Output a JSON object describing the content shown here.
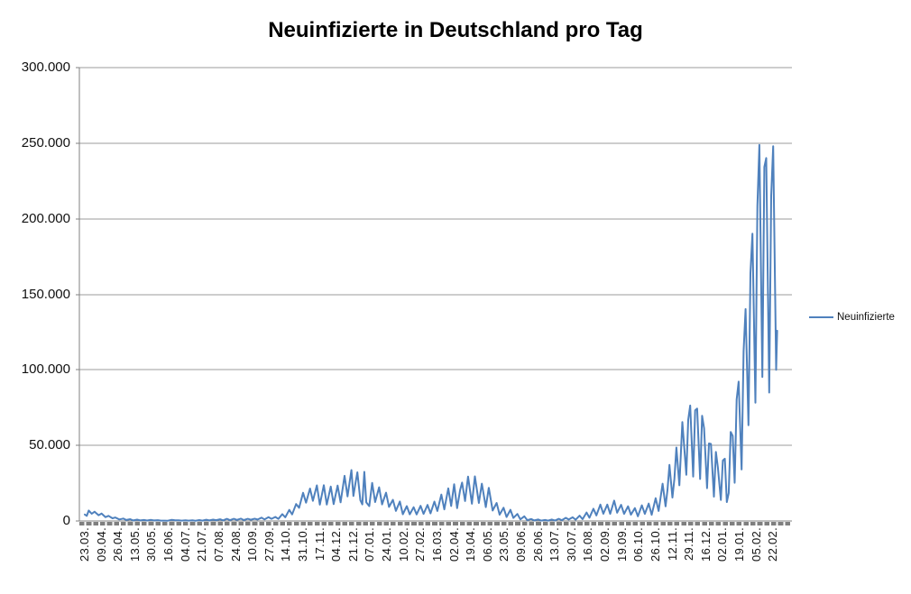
{
  "chart_data": {
    "type": "line",
    "title": "Neuinfizierte in Deutschland pro Tag",
    "xlabel": "",
    "ylabel": "",
    "ylim": [
      0,
      300000
    ],
    "ytick_interval": 50000,
    "grid": true,
    "legend_position": "right",
    "colors": {
      "series_line": "#4f81bd",
      "gridline": "#9b9b9b",
      "axis": "#808080",
      "tick_dashes": "#7f7f7f",
      "text": "#111111",
      "background": "#ffffff"
    },
    "yticks": [
      {
        "value": 0,
        "label": "0"
      },
      {
        "value": 50000,
        "label": "50.000"
      },
      {
        "value": 100000,
        "label": "100.000"
      },
      {
        "value": 150000,
        "label": "150.000"
      },
      {
        "value": 200000,
        "label": "200.000"
      },
      {
        "value": 250000,
        "label": "250.000"
      },
      {
        "value": 300000,
        "label": "300.000"
      }
    ],
    "xtick_interval_days": 17,
    "xtick_labels": [
      "23.03.",
      "09.04.",
      "26.04.",
      "13.05.",
      "30.05.",
      "16.06.",
      "04.07.",
      "21.07.",
      "07.08.",
      "24.08.",
      "10.09.",
      "27.09.",
      "14.10.",
      "31.10.",
      "17.11.",
      "04.12.",
      "21.12.",
      "07.01.",
      "24.01.",
      "10.02.",
      "27.02.",
      "16.03.",
      "02.04.",
      "19.04.",
      "06.05.",
      "23.05.",
      "09.06.",
      "26.06.",
      "13.07.",
      "30.07.",
      "16.08.",
      "02.09.",
      "19.09.",
      "06.10.",
      "26.10.",
      "12.11.",
      "29.11.",
      "16.12.",
      "02.01.",
      "19.01.",
      "05.02.",
      "22.02."
    ],
    "x_total_days": 701,
    "series": [
      {
        "name": "Neuinfizierte",
        "color": "#4f81bd",
        "points": [
          [
            0,
            4300
          ],
          [
            2,
            3400
          ],
          [
            4,
            6930
          ],
          [
            7,
            4750
          ],
          [
            10,
            6170
          ],
          [
            14,
            3830
          ],
          [
            17,
            4970
          ],
          [
            21,
            2540
          ],
          [
            24,
            3380
          ],
          [
            28,
            1780
          ],
          [
            31,
            2350
          ],
          [
            35,
            1020
          ],
          [
            39,
            1640
          ],
          [
            42,
            680
          ],
          [
            46,
            1210
          ],
          [
            49,
            360
          ],
          [
            53,
            910
          ],
          [
            56,
            340
          ],
          [
            60,
            640
          ],
          [
            63,
            290
          ],
          [
            67,
            740
          ],
          [
            70,
            330
          ],
          [
            74,
            510
          ],
          [
            77,
            210
          ],
          [
            81,
            260
          ],
          [
            84,
            190
          ],
          [
            88,
            770
          ],
          [
            91,
            540
          ],
          [
            95,
            480
          ],
          [
            98,
            260
          ],
          [
            102,
            450
          ],
          [
            105,
            220
          ],
          [
            109,
            400
          ],
          [
            112,
            160
          ],
          [
            116,
            580
          ],
          [
            119,
            250
          ],
          [
            123,
            820
          ],
          [
            126,
            340
          ],
          [
            130,
            870
          ],
          [
            133,
            510
          ],
          [
            137,
            1150
          ],
          [
            140,
            440
          ],
          [
            144,
            1450
          ],
          [
            147,
            560
          ],
          [
            151,
            1430
          ],
          [
            154,
            710
          ],
          [
            158,
            1570
          ],
          [
            161,
            610
          ],
          [
            165,
            1450
          ],
          [
            168,
            810
          ],
          [
            172,
            1480
          ],
          [
            175,
            930
          ],
          [
            179,
            2180
          ],
          [
            182,
            1010
          ],
          [
            186,
            2510
          ],
          [
            189,
            1410
          ],
          [
            193,
            2670
          ],
          [
            196,
            1380
          ],
          [
            200,
            4520
          ],
          [
            203,
            2470
          ],
          [
            207,
            7330
          ],
          [
            210,
            4330
          ],
          [
            214,
            11240
          ],
          [
            217,
            8690
          ],
          [
            221,
            18680
          ],
          [
            224,
            12100
          ],
          [
            228,
            21500
          ],
          [
            231,
            13360
          ],
          [
            235,
            23540
          ],
          [
            238,
            10820
          ],
          [
            242,
            23650
          ],
          [
            245,
            10860
          ],
          [
            249,
            22800
          ],
          [
            252,
            11170
          ],
          [
            256,
            23450
          ],
          [
            259,
            12330
          ],
          [
            263,
            29900
          ],
          [
            266,
            16300
          ],
          [
            270,
            33700
          ],
          [
            272,
            16600
          ],
          [
            274,
            24700
          ],
          [
            276,
            32200
          ],
          [
            279,
            13800
          ],
          [
            281,
            11000
          ],
          [
            283,
            32500
          ],
          [
            285,
            12300
          ],
          [
            288,
            9850
          ],
          [
            291,
            25200
          ],
          [
            294,
            12500
          ],
          [
            298,
            22300
          ],
          [
            301,
            11000
          ],
          [
            305,
            18700
          ],
          [
            308,
            9300
          ],
          [
            312,
            14000
          ],
          [
            315,
            6700
          ],
          [
            319,
            12900
          ],
          [
            322,
            4500
          ],
          [
            326,
            9860
          ],
          [
            329,
            4430
          ],
          [
            333,
            9110
          ],
          [
            336,
            4370
          ],
          [
            340,
            10000
          ],
          [
            343,
            4730
          ],
          [
            347,
            10600
          ],
          [
            350,
            5000
          ],
          [
            354,
            12800
          ],
          [
            357,
            6600
          ],
          [
            361,
            17500
          ],
          [
            364,
            7700
          ],
          [
            368,
            21600
          ],
          [
            371,
            9900
          ],
          [
            374,
            24300
          ],
          [
            377,
            8500
          ],
          [
            380,
            20400
          ],
          [
            382,
            25400
          ],
          [
            385,
            13200
          ],
          [
            388,
            29400
          ],
          [
            392,
            11400
          ],
          [
            395,
            29500
          ],
          [
            399,
            11900
          ],
          [
            402,
            24700
          ],
          [
            406,
            9200
          ],
          [
            409,
            21950
          ],
          [
            413,
            6900
          ],
          [
            417,
            11900
          ],
          [
            420,
            4200
          ],
          [
            424,
            8770
          ],
          [
            427,
            2600
          ],
          [
            431,
            7380
          ],
          [
            434,
            2000
          ],
          [
            438,
            4640
          ],
          [
            441,
            1100
          ],
          [
            445,
            3100
          ],
          [
            448,
            550
          ],
          [
            452,
            1330
          ],
          [
            455,
            350
          ],
          [
            459,
            990
          ],
          [
            462,
            220
          ],
          [
            466,
            650
          ],
          [
            469,
            210
          ],
          [
            473,
            950
          ],
          [
            476,
            320
          ],
          [
            480,
            1460
          ],
          [
            483,
            550
          ],
          [
            487,
            2090
          ],
          [
            490,
            960
          ],
          [
            494,
            2450
          ],
          [
            497,
            850
          ],
          [
            501,
            3540
          ],
          [
            504,
            1180
          ],
          [
            508,
            5580
          ],
          [
            511,
            2130
          ],
          [
            515,
            8090
          ],
          [
            518,
            3670
          ],
          [
            522,
            10840
          ],
          [
            525,
            4750
          ],
          [
            529,
            10840
          ],
          [
            532,
            4740
          ],
          [
            536,
            13500
          ],
          [
            539,
            5500
          ],
          [
            543,
            10700
          ],
          [
            546,
            4700
          ],
          [
            550,
            9730
          ],
          [
            553,
            4200
          ],
          [
            557,
            8520
          ],
          [
            560,
            3100
          ],
          [
            564,
            10400
          ],
          [
            567,
            4700
          ],
          [
            571,
            11500
          ],
          [
            574,
            4100
          ],
          [
            578,
            15100
          ],
          [
            581,
            6600
          ],
          [
            585,
            24700
          ],
          [
            588,
            9700
          ],
          [
            590,
            20400
          ],
          [
            592,
            37100
          ],
          [
            595,
            15500
          ],
          [
            597,
            28000
          ],
          [
            599,
            48600
          ],
          [
            602,
            23600
          ],
          [
            605,
            65400
          ],
          [
            609,
            30600
          ],
          [
            611,
            66900
          ],
          [
            613,
            76400
          ],
          [
            616,
            29400
          ],
          [
            618,
            73200
          ],
          [
            620,
            74400
          ],
          [
            623,
            27800
          ],
          [
            625,
            69600
          ],
          [
            627,
            61300
          ],
          [
            630,
            21700
          ],
          [
            632,
            51300
          ],
          [
            634,
            51000
          ],
          [
            637,
            16100
          ],
          [
            639,
            45700
          ],
          [
            641,
            35400
          ],
          [
            644,
            13900
          ],
          [
            646,
            40000
          ],
          [
            648,
            41200
          ],
          [
            650,
            12500
          ],
          [
            652,
            18500
          ],
          [
            654,
            58900
          ],
          [
            656,
            56300
          ],
          [
            658,
            25300
          ],
          [
            660,
            80400
          ],
          [
            662,
            92200
          ],
          [
            665,
            34100
          ],
          [
            667,
            112300
          ],
          [
            669,
            140200
          ],
          [
            672,
            63400
          ],
          [
            674,
            164000
          ],
          [
            676,
            190100
          ],
          [
            679,
            78300
          ],
          [
            681,
            208500
          ],
          [
            683,
            248800
          ],
          [
            686,
            95300
          ],
          [
            688,
            234300
          ],
          [
            690,
            240200
          ],
          [
            693,
            85000
          ],
          [
            695,
            215000
          ],
          [
            697,
            248000
          ],
          [
            700,
            100000
          ],
          [
            701,
            125900
          ]
        ]
      }
    ]
  }
}
